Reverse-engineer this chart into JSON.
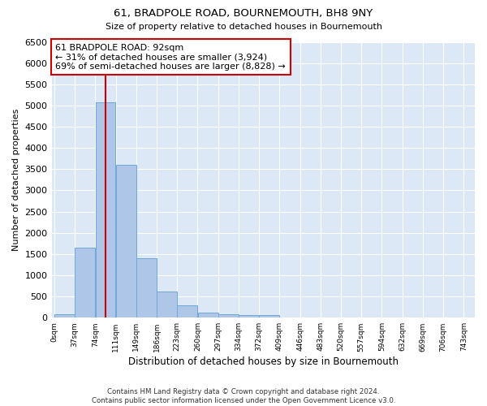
{
  "title": "61, BRADPOLE ROAD, BOURNEMOUTH, BH8 9NY",
  "subtitle": "Size of property relative to detached houses in Bournemouth",
  "xlabel": "Distribution of detached houses by size in Bournemouth",
  "ylabel": "Number of detached properties",
  "footer1": "Contains HM Land Registry data © Crown copyright and database right 2024.",
  "footer2": "Contains public sector information licensed under the Open Government Licence v3.0.",
  "bin_labels": [
    "0sqm",
    "37sqm",
    "74sqm",
    "111sqm",
    "149sqm",
    "186sqm",
    "223sqm",
    "260sqm",
    "297sqm",
    "334sqm",
    "372sqm",
    "409sqm",
    "446sqm",
    "483sqm",
    "520sqm",
    "557sqm",
    "594sqm",
    "632sqm",
    "669sqm",
    "706sqm",
    "743sqm"
  ],
  "bar_values": [
    75,
    1650,
    5075,
    3600,
    1400,
    620,
    290,
    130,
    80,
    65,
    65,
    0,
    0,
    0,
    0,
    0,
    0,
    0,
    0,
    0
  ],
  "bar_color": "#aec6e8",
  "bar_edge_color": "#6fa8d6",
  "property_sqm": 92,
  "property_line_color": "#cc0000",
  "annotation_line1": "61 BRADPOLE ROAD: 92sqm",
  "annotation_line2": "← 31% of detached houses are smaller (3,924)",
  "annotation_line3": "69% of semi-detached houses are larger (8,828) →",
  "annotation_box_facecolor": "#ffffff",
  "annotation_box_edgecolor": "#cc0000",
  "ylim": [
    0,
    6500
  ],
  "xlim_min": -5,
  "xlim_max": 760,
  "bin_width": 37,
  "bin_start": 0,
  "bg_color": "#dce8f5",
  "grid_color": "#ffffff"
}
